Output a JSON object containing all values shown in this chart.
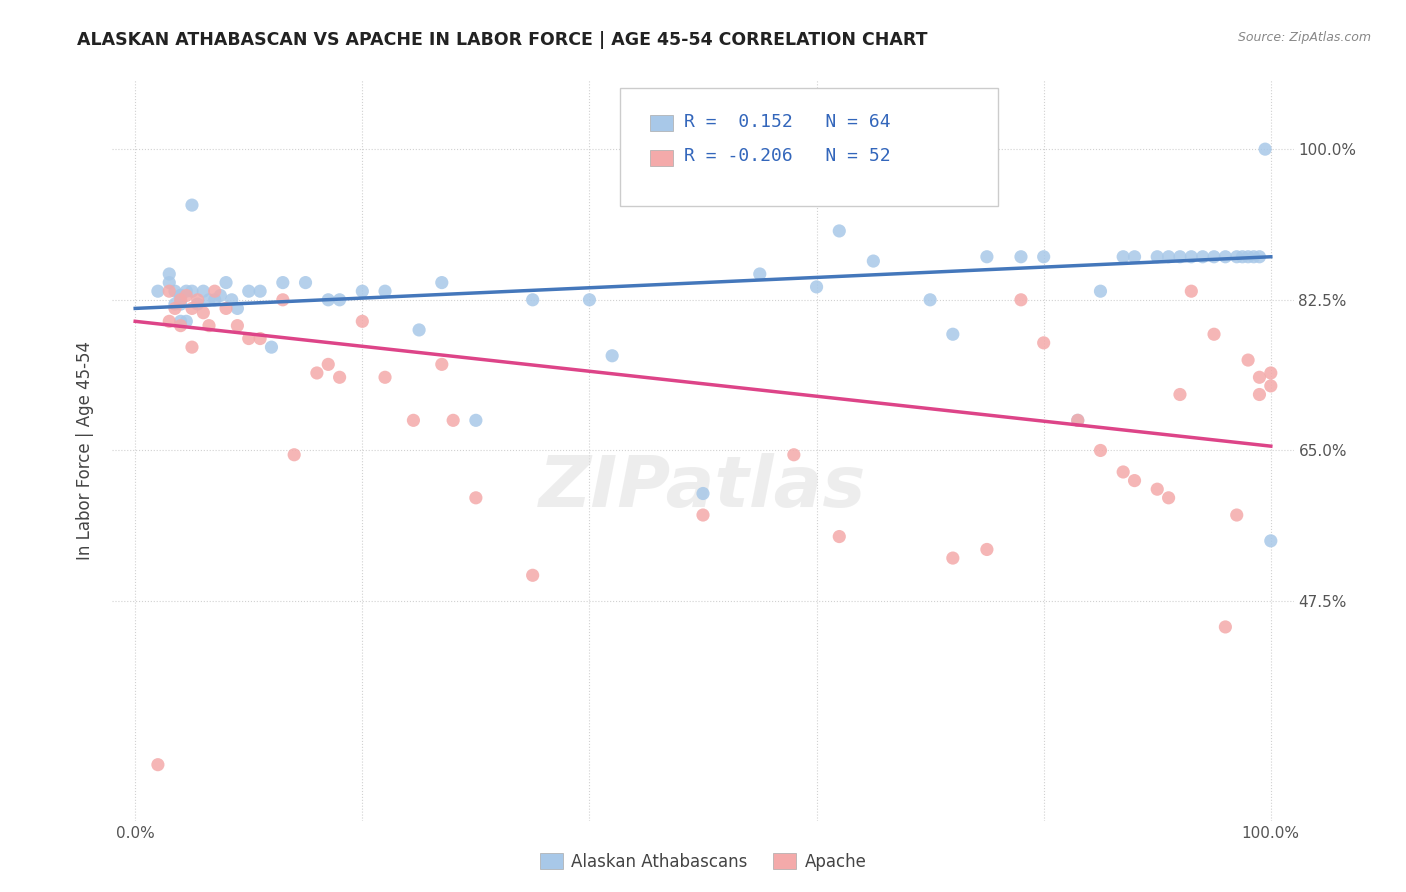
{
  "title": "ALASKAN ATHABASCAN VS APACHE IN LABOR FORCE | AGE 45-54 CORRELATION CHART",
  "source": "Source: ZipAtlas.com",
  "ylabel": "In Labor Force | Age 45-54",
  "xlim": [
    -0.02,
    1.02
  ],
  "ylim": [
    0.22,
    1.08
  ],
  "xticks": [
    0.0,
    0.2,
    0.4,
    0.6,
    0.8,
    1.0
  ],
  "xticklabels": [
    "0.0%",
    "",
    "",
    "",
    "",
    "100.0%"
  ],
  "ytick_positions": [
    0.475,
    0.65,
    0.825,
    1.0
  ],
  "ytick_labels": [
    "47.5%",
    "65.0%",
    "82.5%",
    "100.0%"
  ],
  "blue_color": "#a8c8e8",
  "pink_color": "#f4aaaa",
  "blue_line_color": "#4477bb",
  "pink_line_color": "#dd4488",
  "legend_R_blue": "0.152",
  "legend_N_blue": "64",
  "legend_R_pink": "-0.206",
  "legend_N_pink": "52",
  "watermark": "ZIPatlas",
  "blue_points_x": [
    0.02,
    0.03,
    0.03,
    0.035,
    0.035,
    0.04,
    0.04,
    0.04,
    0.04,
    0.045,
    0.045,
    0.05,
    0.05,
    0.055,
    0.06,
    0.065,
    0.07,
    0.075,
    0.08,
    0.085,
    0.09,
    0.1,
    0.11,
    0.12,
    0.13,
    0.15,
    0.17,
    0.18,
    0.2,
    0.22,
    0.25,
    0.27,
    0.3,
    0.35,
    0.4,
    0.42,
    0.5,
    0.55,
    0.6,
    0.62,
    0.65,
    0.7,
    0.72,
    0.75,
    0.78,
    0.8,
    0.83,
    0.85,
    0.87,
    0.88,
    0.9,
    0.91,
    0.92,
    0.93,
    0.94,
    0.95,
    0.96,
    0.97,
    0.975,
    0.98,
    0.985,
    0.99,
    0.995,
    1.0
  ],
  "blue_points_y": [
    0.835,
    0.855,
    0.845,
    0.835,
    0.82,
    0.83,
    0.82,
    0.8,
    0.83,
    0.835,
    0.8,
    0.935,
    0.835,
    0.82,
    0.835,
    0.825,
    0.825,
    0.83,
    0.845,
    0.825,
    0.815,
    0.835,
    0.835,
    0.77,
    0.845,
    0.845,
    0.825,
    0.825,
    0.835,
    0.835,
    0.79,
    0.845,
    0.685,
    0.825,
    0.825,
    0.76,
    0.6,
    0.855,
    0.84,
    0.905,
    0.87,
    0.825,
    0.785,
    0.875,
    0.875,
    0.875,
    0.685,
    0.835,
    0.875,
    0.875,
    0.875,
    0.875,
    0.875,
    0.875,
    0.875,
    0.875,
    0.875,
    0.875,
    0.875,
    0.875,
    0.875,
    0.875,
    1.0,
    0.545
  ],
  "pink_points_x": [
    0.02,
    0.03,
    0.03,
    0.035,
    0.04,
    0.04,
    0.045,
    0.05,
    0.05,
    0.055,
    0.06,
    0.065,
    0.07,
    0.08,
    0.09,
    0.1,
    0.11,
    0.13,
    0.14,
    0.16,
    0.17,
    0.18,
    0.2,
    0.22,
    0.245,
    0.27,
    0.28,
    0.3,
    0.35,
    0.5,
    0.58,
    0.62,
    0.72,
    0.75,
    0.78,
    0.8,
    0.83,
    0.85,
    0.87,
    0.88,
    0.9,
    0.91,
    0.92,
    0.93,
    0.95,
    0.96,
    0.97,
    0.98,
    0.99,
    0.99,
    1.0,
    1.0
  ],
  "pink_points_y": [
    0.285,
    0.835,
    0.8,
    0.815,
    0.825,
    0.795,
    0.83,
    0.815,
    0.77,
    0.825,
    0.81,
    0.795,
    0.835,
    0.815,
    0.795,
    0.78,
    0.78,
    0.825,
    0.645,
    0.74,
    0.75,
    0.735,
    0.8,
    0.735,
    0.685,
    0.75,
    0.685,
    0.595,
    0.505,
    0.575,
    0.645,
    0.55,
    0.525,
    0.535,
    0.825,
    0.775,
    0.685,
    0.65,
    0.625,
    0.615,
    0.605,
    0.595,
    0.715,
    0.835,
    0.785,
    0.445,
    0.575,
    0.755,
    0.715,
    0.735,
    0.725,
    0.74
  ],
  "blue_trendline_x": [
    0.0,
    1.0
  ],
  "blue_trendline_y": [
    0.815,
    0.875
  ],
  "pink_trendline_x": [
    0.0,
    1.0
  ],
  "pink_trendline_y": [
    0.8,
    0.655
  ]
}
